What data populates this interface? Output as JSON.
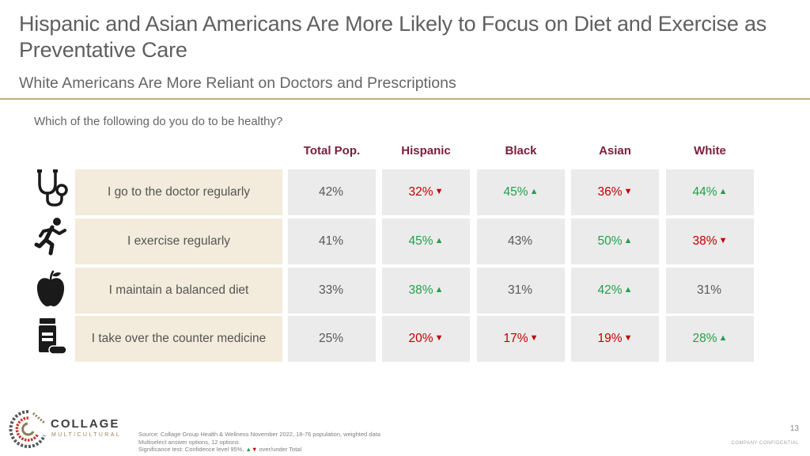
{
  "title": "Hispanic and Asian Americans Are More Likely to Focus on Diet and Exercise as Preventative Care",
  "subtitle": "White Americans Are More Reliant on Doctors and Prescriptions",
  "question": "Which of the following do you do to be healthy?",
  "columns": [
    "Total Pop.",
    "Hispanic",
    "Black",
    "Asian",
    "White"
  ],
  "rows": [
    {
      "label": "I go to the doctor regularly",
      "icon": "stethoscope-icon",
      "cells": [
        {
          "value": "42%",
          "trend": "none",
          "arrow": ""
        },
        {
          "value": "32%",
          "trend": "down",
          "arrow": "▼"
        },
        {
          "value": "45%",
          "trend": "up",
          "arrow": "▲"
        },
        {
          "value": "36%",
          "trend": "down",
          "arrow": "▼"
        },
        {
          "value": "44%",
          "trend": "up",
          "arrow": "▲"
        }
      ]
    },
    {
      "label": "I exercise regularly",
      "icon": "running-person-icon",
      "cells": [
        {
          "value": "41%",
          "trend": "none",
          "arrow": ""
        },
        {
          "value": "45%",
          "trend": "up",
          "arrow": "▲"
        },
        {
          "value": "43%",
          "trend": "none",
          "arrow": ""
        },
        {
          "value": "50%",
          "trend": "up",
          "arrow": "▲"
        },
        {
          "value": "38%",
          "trend": "down",
          "arrow": "▼"
        }
      ]
    },
    {
      "label": "I maintain a balanced diet",
      "icon": "apple-icon",
      "cells": [
        {
          "value": "33%",
          "trend": "none",
          "arrow": ""
        },
        {
          "value": "38%",
          "trend": "up",
          "arrow": "▲"
        },
        {
          "value": "31%",
          "trend": "none",
          "arrow": ""
        },
        {
          "value": "42%",
          "trend": "up",
          "arrow": "▲"
        },
        {
          "value": "31%",
          "trend": "none",
          "arrow": ""
        }
      ]
    },
    {
      "label": "I take over the counter medicine",
      "icon": "medicine-bottle-icon",
      "cells": [
        {
          "value": "25%",
          "trend": "none",
          "arrow": ""
        },
        {
          "value": "20%",
          "trend": "down",
          "arrow": "▼"
        },
        {
          "value": "17%",
          "trend": "down",
          "arrow": "▼"
        },
        {
          "value": "19%",
          "trend": "down",
          "arrow": "▼"
        },
        {
          "value": "28%",
          "trend": "up",
          "arrow": "▲"
        }
      ]
    }
  ],
  "colors": {
    "header": "#7b1e3a",
    "up": "#22a14b",
    "down": "#c00000",
    "label_bg": "#f3ebdb",
    "cell_bg": "#ebebeb",
    "rule": "#c4ad7c"
  },
  "logo": {
    "name": "COLLAGE",
    "sub": "MULTICULTURAL",
    "icon": "collage-logo-icon"
  },
  "source": {
    "line1": "Source: Collage Group Health & Wellness November 2022, 18-76 population, weighted data",
    "line2": "Multiselect answer options, 12 options",
    "line3_prefix": "Significance test: Confidence level 95%,",
    "up_arrow": "▲",
    "down_arrow": "▼",
    "line3_suffix": "over/under Total"
  },
  "page_number": "13",
  "confidential": "COMPANY CONFIDENTIAL"
}
